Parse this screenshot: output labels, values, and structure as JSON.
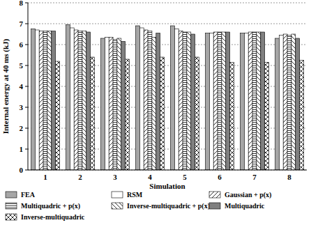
{
  "chart_data": {
    "type": "bar",
    "x_label": "Simulation",
    "y_label": "Internal energy at 40 ms (kJ)",
    "categories": [
      "1",
      "2",
      "3",
      "4",
      "5",
      "6",
      "7",
      "8"
    ],
    "series": [
      {
        "name": "FEA",
        "color": "#a6a6a6",
        "values": [
          6.75,
          6.95,
          6.3,
          6.9,
          6.9,
          6.55,
          6.55,
          6.3
        ]
      },
      {
        "name": "RSM",
        "color": "#ffffff",
        "values": [
          6.7,
          6.8,
          6.35,
          6.8,
          6.75,
          6.55,
          6.55,
          6.45
        ]
      },
      {
        "name": "Gaussian + p(x)",
        "color": "#ffffff",
        "values": [
          6.65,
          6.7,
          6.35,
          6.7,
          6.65,
          6.6,
          6.6,
          6.5
        ]
      },
      {
        "name": "Multiquadric + p(x)",
        "color": "#ffffff",
        "values": [
          6.65,
          6.65,
          6.25,
          6.65,
          6.6,
          6.6,
          6.6,
          6.45
        ]
      },
      {
        "name": "Inverse-multiquadric + p(x)",
        "color": "#ffffff",
        "values": [
          6.65,
          6.65,
          6.3,
          6.35,
          6.6,
          6.6,
          6.6,
          6.5
        ]
      },
      {
        "name": "Multiquadric",
        "color": "#808080",
        "values": [
          6.65,
          6.6,
          6.15,
          6.55,
          6.5,
          6.6,
          6.6,
          6.3
        ]
      },
      {
        "name": "Inverse-multiquadric",
        "color": "#ffffff",
        "values": [
          5.2,
          5.4,
          5.3,
          5.4,
          5.4,
          5.15,
          5.15,
          5.25
        ]
      }
    ],
    "ylim": [
      0,
      8
    ],
    "yticks": [
      0,
      1,
      2,
      3,
      4,
      5,
      6,
      7,
      8
    ],
    "grid": true,
    "legend": "bottom"
  }
}
